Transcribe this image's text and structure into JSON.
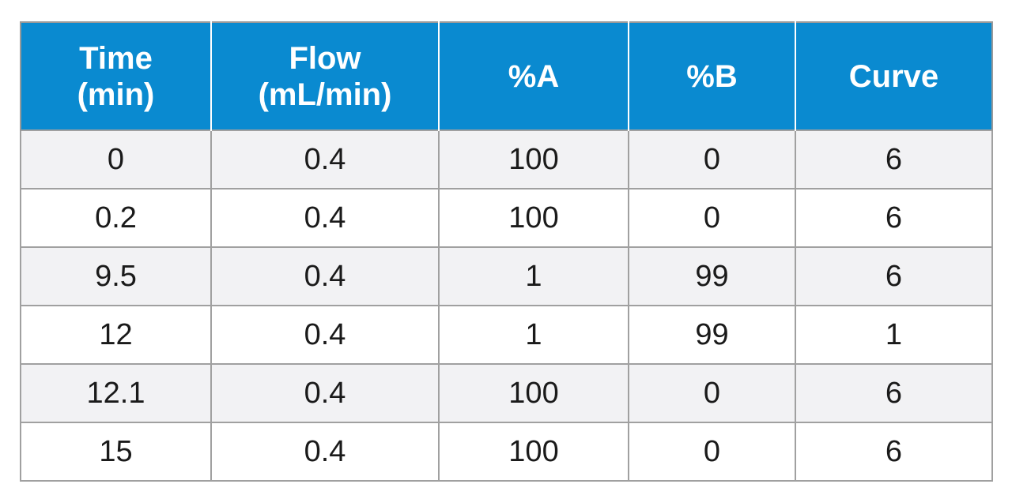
{
  "table": {
    "headers": [
      [
        "Time",
        "(min)"
      ],
      [
        "Flow",
        "(mL/min)"
      ],
      [
        "%A"
      ],
      [
        "%B"
      ],
      [
        "Curve"
      ]
    ],
    "rows": [
      [
        "0",
        "0.4",
        "100",
        "0",
        "6"
      ],
      [
        "0.2",
        "0.4",
        "100",
        "0",
        "6"
      ],
      [
        "9.5",
        "0.4",
        "1",
        "99",
        "6"
      ],
      [
        "12",
        "0.4",
        "1",
        "99",
        "1"
      ],
      [
        "12.1",
        "0.4",
        "100",
        "0",
        "6"
      ],
      [
        "15",
        "0.4",
        "100",
        "0",
        "6"
      ]
    ],
    "header_color": "#0a8ad0",
    "stripe_color": "#f2f2f4"
  }
}
